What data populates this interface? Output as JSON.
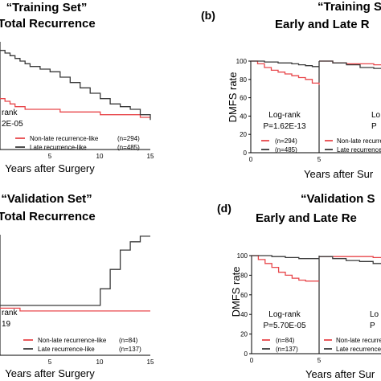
{
  "colors": {
    "early": "#e8474b",
    "late": "#3a3a3a",
    "frame": "#000000"
  },
  "chart_data": [
    {
      "panel": "a",
      "type": "line",
      "panel_label": "",
      "title": "“Training Set”",
      "subtitle": "Total Recurrence",
      "xlabel": "Years after Surgery",
      "ylabel": "",
      "xlim": [
        0,
        15
      ],
      "ylim": [
        0,
        100
      ],
      "x_ticks": [
        "5",
        "10",
        "15"
      ],
      "y_ticks": [],
      "annotation": [
        "rank",
        "2E-05"
      ],
      "legend": [
        {
          "label": "Non-late recurrence-like",
          "count": "(n=294)"
        },
        {
          "label": "Late recurrence-like",
          "count": "(n=485)"
        }
      ],
      "series": [
        {
          "x": [
            0,
            0.5,
            1,
            1.5,
            2,
            2.5,
            3,
            4,
            5,
            6,
            7,
            8,
            9,
            10,
            11,
            12,
            13,
            14,
            15
          ],
          "y": [
            74,
            73,
            72,
            71,
            71,
            70,
            70,
            70,
            70,
            69,
            69,
            69,
            69,
            68,
            68,
            68,
            68,
            67,
            67
          ]
        },
        {
          "x": [
            0,
            0.5,
            1,
            1.5,
            2,
            2.5,
            3,
            4,
            5,
            6,
            7,
            8,
            9,
            10,
            11,
            12,
            13,
            14,
            15
          ],
          "y": [
            92,
            91,
            90,
            89,
            88,
            87,
            86,
            85,
            84,
            82,
            80,
            78,
            76,
            74,
            72,
            71,
            70,
            68,
            66
          ]
        }
      ]
    },
    {
      "panel": "b",
      "type": "line",
      "panel_label": "(b)",
      "title": "“Training Se",
      "subtitle": "Early and Late R",
      "xlabel": "Years after Sur",
      "ylabel": "DMFS rate",
      "xlim": [
        0,
        10
      ],
      "ylim": [
        0,
        100
      ],
      "x_ticks": [
        "0",
        "5"
      ],
      "y_ticks": [
        "0",
        "20",
        "40",
        "60",
        "80",
        "100"
      ],
      "annotation": [
        "Log-rank",
        "P=1.62E-13"
      ],
      "annotation2": [
        "Lo",
        "P"
      ],
      "legend": [
        {
          "label": "(n=294)",
          "count": ""
        },
        {
          "label": "(n=485)",
          "count": ""
        }
      ],
      "legend2": [
        "Non-late recurrence-like",
        "Late recurrence"
      ],
      "series": [
        {
          "x": [
            0,
            0.5,
            1,
            1.5,
            2,
            2.5,
            3,
            3.5,
            4,
            4.5,
            5
          ],
          "y": [
            100,
            97,
            93,
            90,
            88,
            86,
            84,
            82,
            80,
            76,
            74
          ]
        },
        {
          "x": [
            0,
            0.5,
            1,
            1.5,
            2,
            2.5,
            3,
            3.5,
            4,
            4.5,
            5
          ],
          "y": [
            100,
            100,
            99,
            99,
            98,
            98,
            97,
            96,
            95,
            94,
            93
          ]
        },
        {
          "x": [
            5,
            6,
            7,
            8,
            9,
            10
          ],
          "y": [
            100,
            98,
            97,
            97,
            96,
            96
          ]
        },
        {
          "x": [
            5,
            6,
            7,
            8,
            9,
            10
          ],
          "y": [
            100,
            98,
            96,
            93,
            92,
            90
          ]
        }
      ]
    },
    {
      "panel": "c",
      "type": "line",
      "panel_label": "",
      "title": "“Validation Set”",
      "subtitle": "Total Recurrence",
      "xlabel": "Years after Surgery",
      "ylabel": "",
      "xlim": [
        0,
        15
      ],
      "ylim": [
        0,
        100
      ],
      "x_ticks": [
        "5",
        "10",
        "15"
      ],
      "y_ticks": [],
      "annotation": [
        "rank",
        "19"
      ],
      "legend": [
        {
          "label": "Non-late recurrence-like",
          "count": "(n=84)"
        },
        {
          "label": "Late recurrence-like",
          "count": "(n=137)"
        }
      ],
      "series": [
        {
          "x": [
            0,
            1,
            2,
            3,
            4,
            5,
            6,
            7,
            8,
            9,
            10,
            11,
            12,
            13,
            14,
            15
          ],
          "y": [
            72,
            72,
            71,
            71,
            71,
            71,
            71,
            71,
            71,
            71,
            71,
            71,
            71,
            71,
            71,
            71
          ]
        },
        {
          "x": [
            0,
            1,
            2,
            3,
            4,
            5,
            6,
            7,
            8,
            9,
            10,
            11,
            12,
            13,
            14,
            15
          ],
          "y": [
            73,
            73,
            73,
            73,
            73,
            73,
            73,
            73,
            73,
            73,
            79,
            86,
            93,
            96,
            98,
            98
          ]
        }
      ]
    },
    {
      "panel": "d",
      "type": "line",
      "panel_label": "(d)",
      "title": "“Validation S",
      "subtitle": "Early and Late Re",
      "xlabel": "Years after Sur",
      "ylabel": "DMFS rate",
      "xlim": [
        0,
        10
      ],
      "ylim": [
        0,
        100
      ],
      "x_ticks": [
        "0",
        "5"
      ],
      "y_ticks": [
        "0",
        "20",
        "40",
        "60",
        "80",
        "100"
      ],
      "annotation": [
        "Log-rank",
        "P=5.70E-05"
      ],
      "annotation2": [
        "Lo",
        "P"
      ],
      "legend": [
        {
          "label": "(n=84)",
          "count": ""
        },
        {
          "label": "(n=137)",
          "count": ""
        }
      ],
      "legend2": [
        "Non-late recurren",
        "Late recurrence"
      ],
      "series": [
        {
          "x": [
            0,
            0.5,
            1,
            1.5,
            2,
            2.5,
            3,
            3.5,
            4,
            4.5,
            5
          ],
          "y": [
            100,
            96,
            92,
            88,
            83,
            80,
            77,
            75,
            74,
            74,
            74
          ]
        },
        {
          "x": [
            0,
            0.5,
            1,
            1.5,
            2,
            2.5,
            3,
            3.5,
            4,
            4.5,
            5
          ],
          "y": [
            100,
            100,
            100,
            99,
            99,
            98,
            98,
            97,
            97,
            97,
            97
          ]
        },
        {
          "x": [
            5,
            6,
            7,
            8,
            9,
            10
          ],
          "y": [
            99,
            99,
            99,
            99,
            98,
            98
          ]
        },
        {
          "x": [
            5,
            6,
            7,
            8,
            9,
            10
          ],
          "y": [
            99,
            97,
            95,
            94,
            92,
            91
          ]
        }
      ]
    }
  ]
}
